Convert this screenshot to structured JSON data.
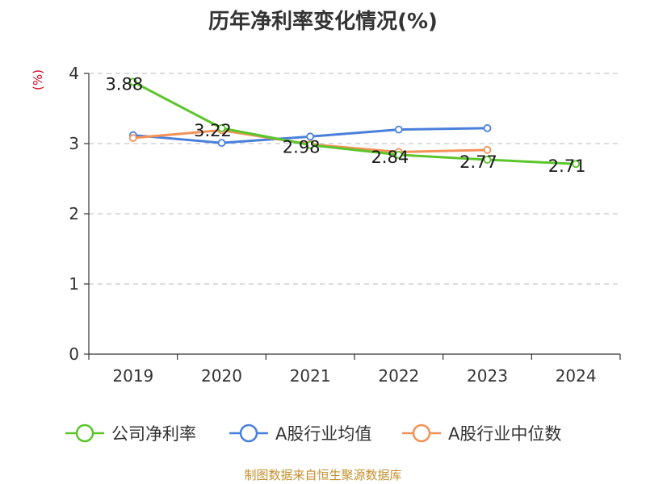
{
  "title": "历年净利率变化情况(%)",
  "unit_label": "(%)",
  "source": "制图数据来自恒生聚源数据库",
  "colors": {
    "net_margin": "#5cc52b",
    "industry_avg": "#4a7fdc",
    "industry_median": "#f39157",
    "grid": "#c8c8c8",
    "axis": "#333333",
    "unit": "#d0021b",
    "source": "#c4902e"
  },
  "chart_data": {
    "type": "line",
    "title": "历年净利率变化情况(%)",
    "ylabel": "(%)",
    "categories": [
      "2019",
      "2020",
      "2021",
      "2022",
      "2023",
      "2024"
    ],
    "yticks": [
      "0",
      "1",
      "2",
      "3",
      "4"
    ],
    "ylim": [
      0,
      4
    ],
    "grid": true,
    "legend_position": "bottom",
    "series": [
      {
        "name": "公司净利率",
        "values": [
          3.88,
          3.22,
          2.98,
          2.84,
          2.77,
          2.71
        ],
        "labels": [
          "3.88",
          "3.22",
          "2.98",
          "2.84",
          "2.77",
          "2.71"
        ],
        "color": "#5cc52b"
      },
      {
        "name": "A股行业均值",
        "values": [
          3.12,
          3.01,
          3.1,
          3.2,
          3.22,
          null
        ],
        "color": "#4a7fdc"
      },
      {
        "name": "A股行业中位数",
        "values": [
          3.08,
          3.19,
          2.99,
          2.88,
          2.91,
          null
        ],
        "color": "#f39157"
      }
    ]
  }
}
